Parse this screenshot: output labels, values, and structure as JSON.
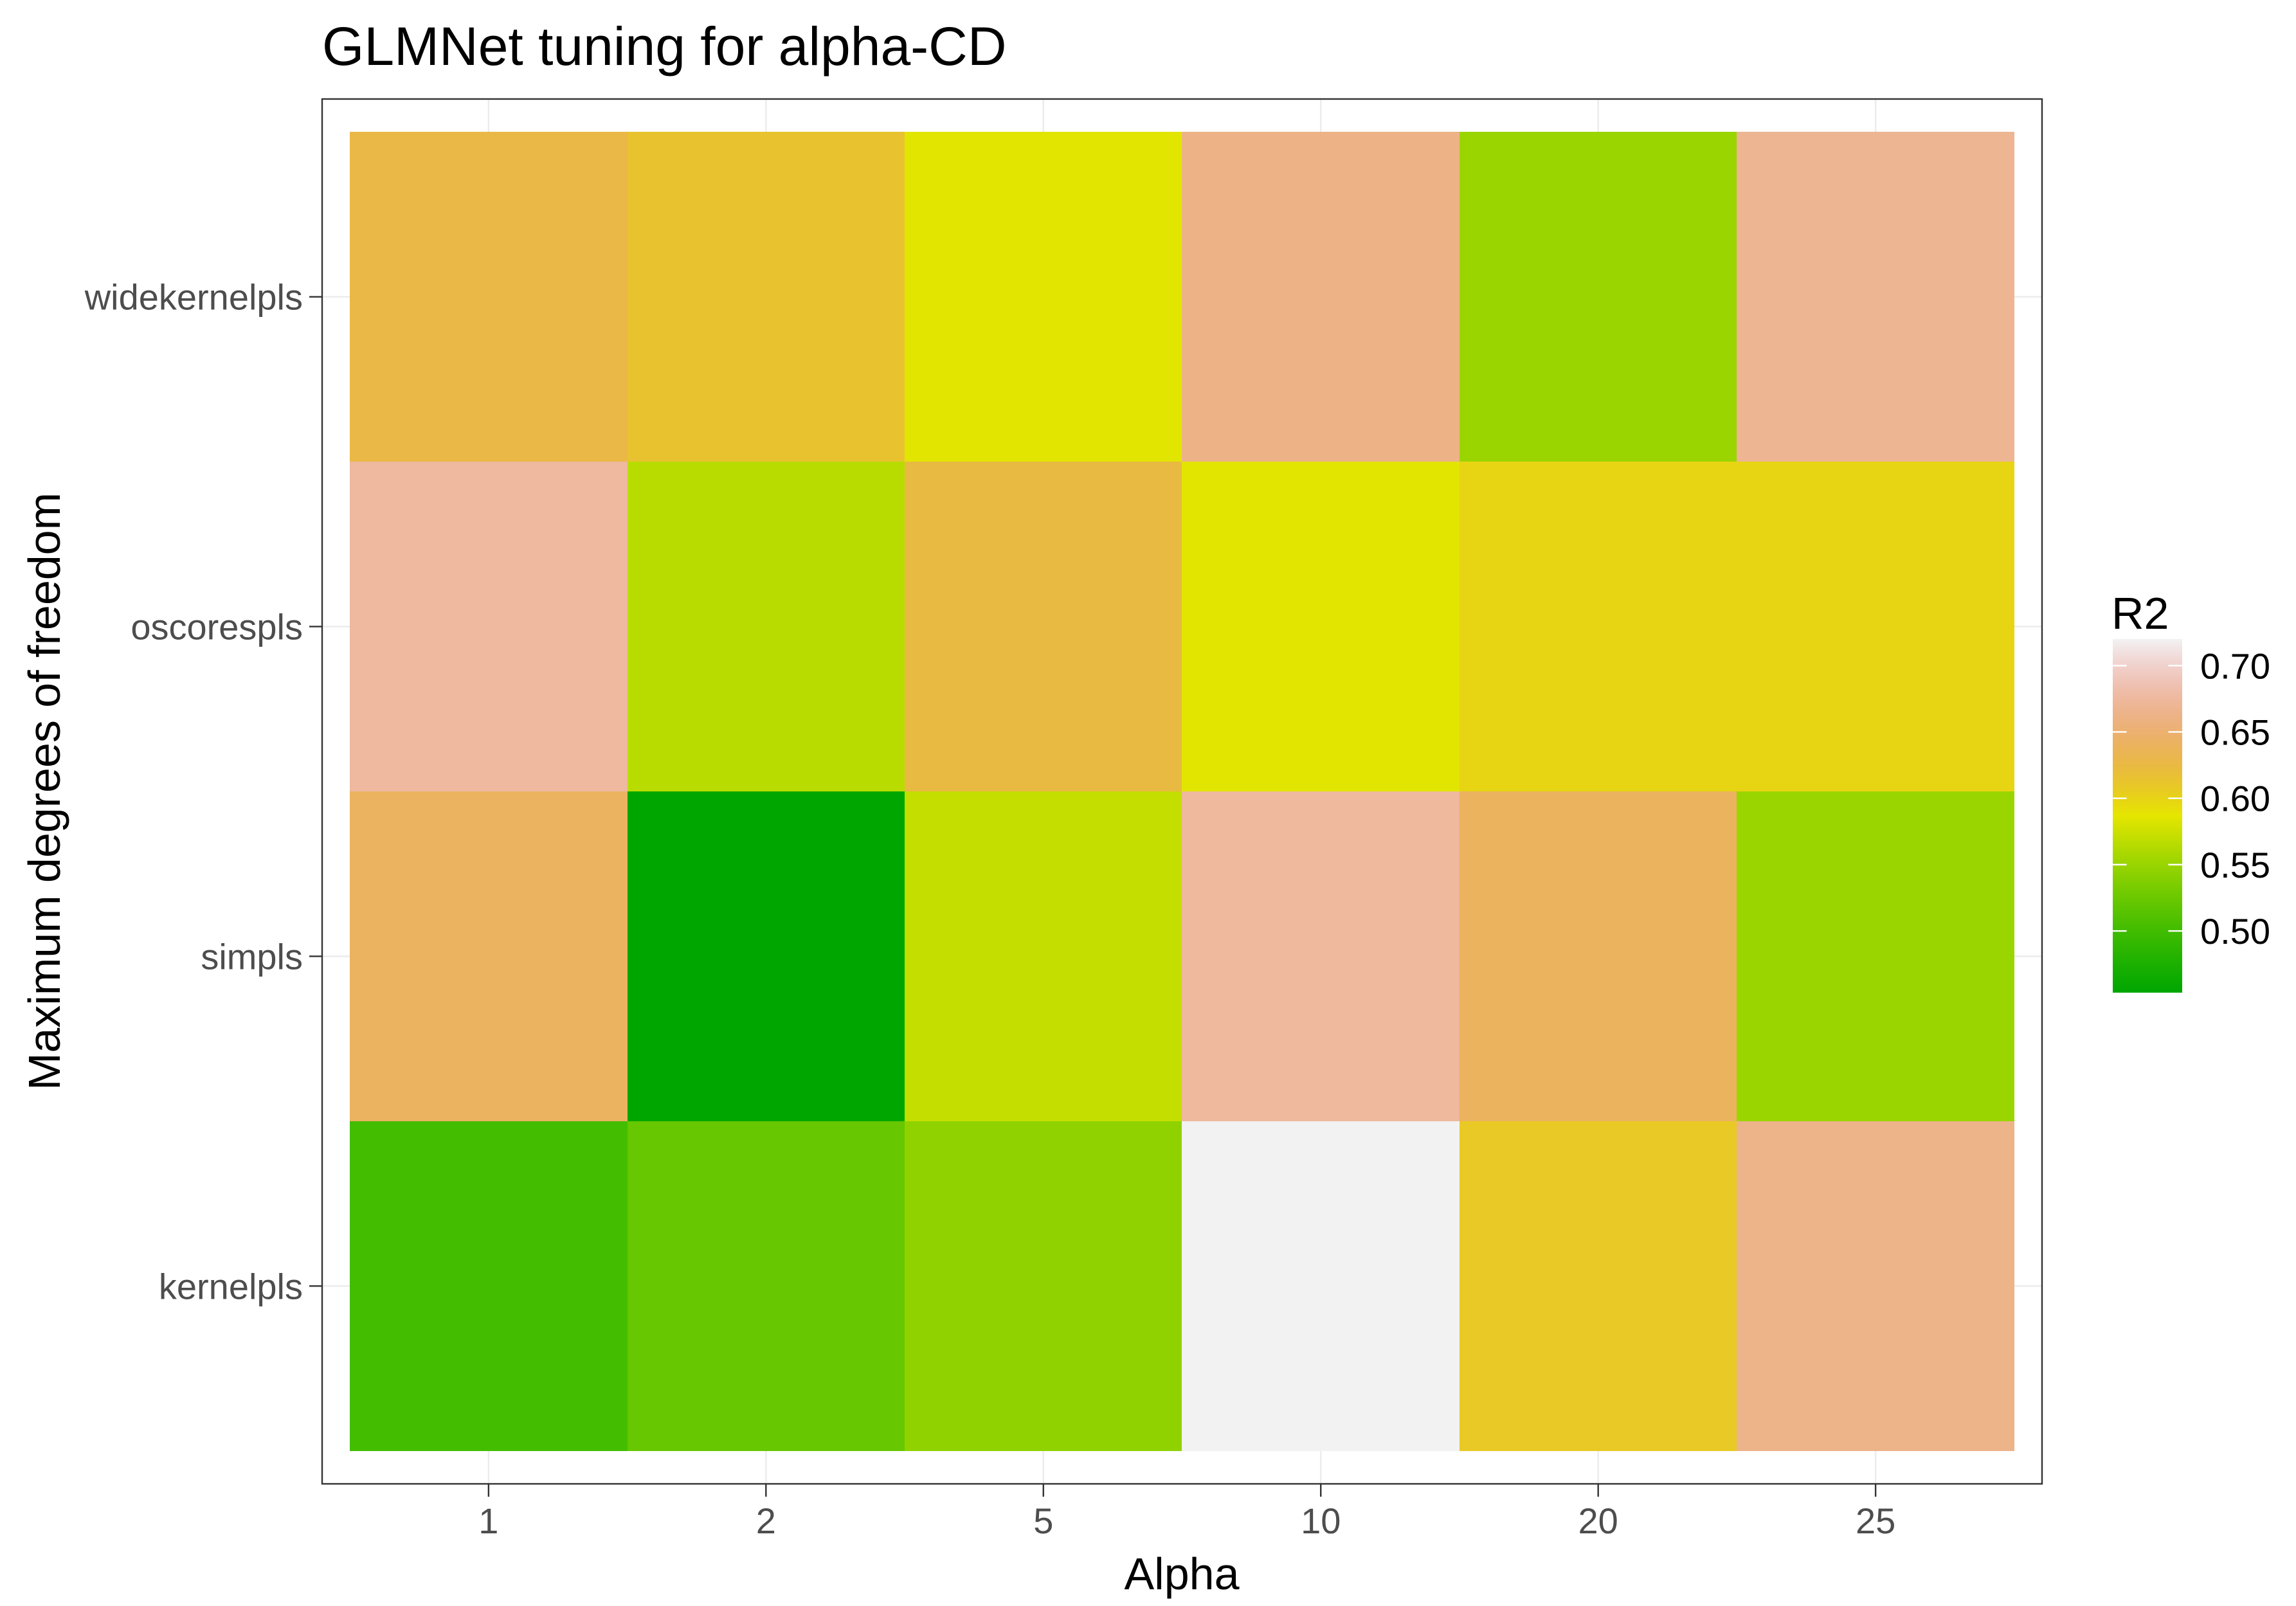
{
  "chart_data": {
    "type": "heatmap",
    "title": "GLMNet tuning for alpha-CD",
    "xlabel": "Alpha",
    "ylabel": "Maximum degrees of freedom",
    "x_categories": [
      "1",
      "2",
      "5",
      "10",
      "20",
      "25"
    ],
    "y_categories": [
      "kernelpls",
      "simpls",
      "oscorespls",
      "widekernelpls"
    ],
    "values": [
      [
        0.501,
        0.523,
        0.545,
        0.72,
        0.608,
        0.664
      ],
      [
        0.641,
        0.454,
        0.571,
        0.675,
        0.64,
        0.551
      ],
      [
        0.676,
        0.566,
        0.624,
        0.585,
        0.598,
        0.598
      ],
      [
        0.627,
        0.614,
        0.585,
        0.663,
        0.551,
        0.669
      ]
    ],
    "legend": {
      "title": "R2",
      "labels": [
        "0.50",
        "0.55",
        "0.60",
        "0.65",
        "0.70"
      ],
      "placement": "right"
    },
    "color_scale": {
      "stops": [
        "#00A600",
        "#E6E600",
        "#F2F2F2"
      ]
    },
    "grid": true
  }
}
